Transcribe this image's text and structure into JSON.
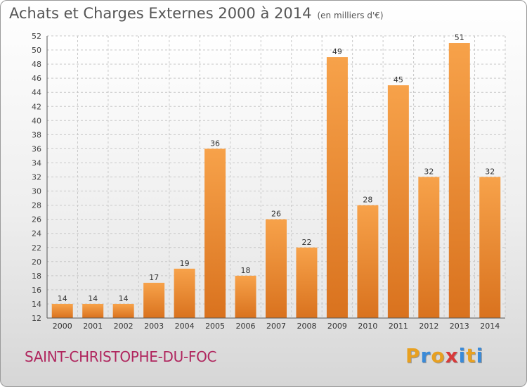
{
  "chart_data": {
    "type": "bar",
    "title": "Achats et Charges Externes 2000 à 2014",
    "subtitle": "(en milliers d'€)",
    "categories": [
      "2000",
      "2001",
      "2002",
      "2003",
      "2004",
      "2005",
      "2006",
      "2007",
      "2008",
      "2009",
      "2010",
      "2011",
      "2012",
      "2013",
      "2014"
    ],
    "values": [
      14,
      14,
      14,
      17,
      19,
      36,
      18,
      26,
      22,
      49,
      28,
      45,
      32,
      51,
      32
    ],
    "ylim": [
      12,
      52
    ],
    "yticks": [
      12,
      14,
      16,
      18,
      20,
      22,
      24,
      26,
      28,
      30,
      32,
      34,
      36,
      38,
      40,
      42,
      44,
      46,
      48,
      50,
      52
    ],
    "grid": true,
    "bar_color_top": "#f7a24a",
    "bar_color_bottom": "#d9721e"
  },
  "footer": {
    "commune": "SAINT-CHRISTOPHE-DU-FOC",
    "logo_letters": [
      "P",
      "r",
      "o",
      "x",
      "i",
      "t",
      "i"
    ],
    "logo_colors": [
      "#e8a020",
      "#3a8ad8",
      "#e8a020",
      "#d83a3a",
      "#3a8ad8",
      "#e8a020",
      "#3a8ad8"
    ]
  }
}
